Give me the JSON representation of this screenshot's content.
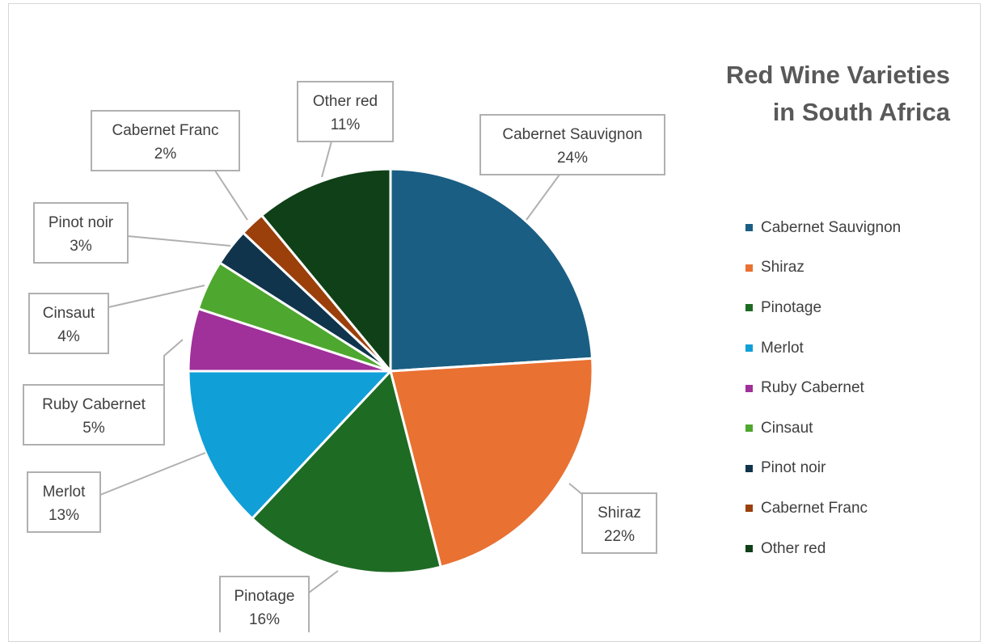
{
  "chart_data": {
    "type": "pie",
    "title_lines": [
      "Red Wine Varieties",
      "in South Africa"
    ],
    "legend_position": "right",
    "slices": [
      {
        "name": "Cabernet Sauvignon",
        "value": 24,
        "label": "24%",
        "color": "#1a5e83"
      },
      {
        "name": "Shiraz",
        "value": 22,
        "label": "22%",
        "color": "#e97132"
      },
      {
        "name": "Pinotage",
        "value": 16,
        "label": "16%",
        "color": "#1e6b24"
      },
      {
        "name": "Merlot",
        "value": 13,
        "label": "13%",
        "color": "#119fd8"
      },
      {
        "name": "Ruby Cabernet",
        "value": 5,
        "label": "5%",
        "color": "#a0309a"
      },
      {
        "name": "Cinsaut",
        "value": 4,
        "label": "4%",
        "color": "#4ea72e"
      },
      {
        "name": "Pinot noir",
        "value": 3,
        "label": "3%",
        "color": "#10344c"
      },
      {
        "name": "Cabernet Franc",
        "value": 2,
        "label": "2%",
        "color": "#9b3f0b"
      },
      {
        "name": "Other red",
        "value": 11,
        "label": "11%",
        "color": "#0f4017"
      }
    ]
  }
}
